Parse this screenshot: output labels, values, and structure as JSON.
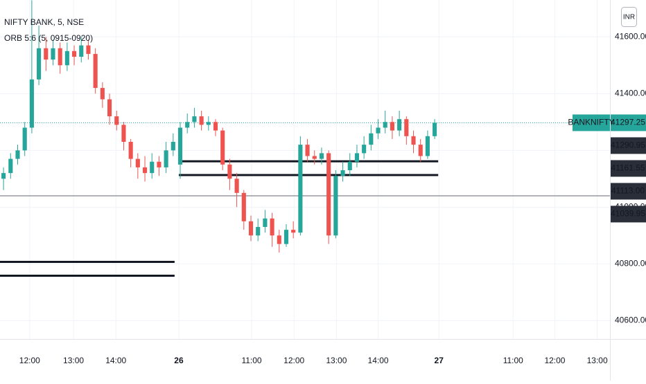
{
  "chart_data": {
    "type": "candlestick",
    "title": "NIFTY BANK, 5, NSE",
    "subtitle": "ORB 5:6 (5, 0915-0920)",
    "symbol": "BANKNIFTY",
    "currency": "INR",
    "up_color": "#26a69a",
    "down_color": "#ef5350",
    "x": [
      0,
      1,
      2,
      3,
      4,
      5,
      6,
      7,
      8,
      9,
      10,
      11,
      12,
      13,
      14,
      15,
      16,
      17,
      18,
      19,
      20,
      21,
      22,
      23,
      24,
      25,
      26,
      27,
      28,
      29,
      30,
      31,
      32,
      33,
      34,
      35,
      36,
      37,
      38,
      39,
      40,
      41,
      42,
      43,
      44,
      45,
      46,
      47,
      48,
      49,
      50,
      51,
      52,
      53,
      54,
      55,
      56,
      57,
      58,
      59,
      60,
      61
    ],
    "open": [
      41100,
      41120,
      41170,
      41200,
      41280,
      41450,
      41560,
      41520,
      41560,
      41500,
      41550,
      41530,
      41570,
      41540,
      41420,
      41380,
      41320,
      41290,
      41230,
      41170,
      41140,
      41120,
      41160,
      41140,
      41200,
      41150,
      41280,
      41300,
      41320,
      41290,
      41300,
      41270,
      41150,
      41100,
      41050,
      40950,
      40900,
      40930,
      40960,
      40900,
      40870,
      40920,
      40910,
      41220,
      41180,
      41170,
      41190,
      40900,
      41110,
      41130,
      41160,
      41190,
      41220,
      41260,
      41280,
      41300,
      41270,
      41310,
      41250,
      41220,
      41180,
      41250
    ],
    "high": [
      41140,
      41190,
      41220,
      41300,
      41729,
      41640,
      41600,
      41590,
      41580,
      41580,
      41570,
      41600,
      41590,
      41560,
      41440,
      41400,
      41340,
      41300,
      41240,
      41190,
      41180,
      41190,
      41180,
      41230,
      41260,
      41300,
      41330,
      41350,
      41340,
      41320,
      41310,
      41280,
      41170,
      41120,
      41060,
      40970,
      40960,
      40990,
      40980,
      40920,
      40940,
      40950,
      41250,
      41240,
      41200,
      41210,
      41200,
      41130,
      41160,
      41190,
      41220,
      41250,
      41290,
      41310,
      41340,
      41320,
      41340,
      41320,
      41270,
      41240,
      41270,
      41310
    ],
    "low": [
      41060,
      41100,
      41150,
      41180,
      41260,
      41430,
      41480,
      41500,
      41470,
      41480,
      41500,
      41510,
      41520,
      41400,
      41350,
      41290,
      41270,
      41200,
      41140,
      41100,
      41090,
      41100,
      41110,
      41120,
      41180,
      41100,
      41260,
      41280,
      41270,
      41270,
      41250,
      41130,
      41060,
      41000,
      40920,
      40880,
      40880,
      40910,
      40860,
      40840,
      40860,
      40890,
      40900,
      41160,
      41150,
      41150,
      40870,
      40890,
      41090,
      41110,
      41140,
      41170,
      41200,
      41240,
      41260,
      41240,
      41250,
      41220,
      41190,
      41160,
      41170,
      41240
    ],
    "close": [
      41120,
      41170,
      41200,
      41280,
      41450,
      41560,
      41520,
      41560,
      41500,
      41550,
      41530,
      41570,
      41540,
      41420,
      41380,
      41320,
      41290,
      41230,
      41170,
      41140,
      41120,
      41160,
      41140,
      41200,
      41230,
      41280,
      41300,
      41320,
      41290,
      41300,
      41270,
      41150,
      41100,
      41050,
      40950,
      40900,
      40930,
      40960,
      40900,
      40870,
      40920,
      40910,
      41220,
      41180,
      41170,
      41190,
      40900,
      41110,
      41130,
      41160,
      41190,
      41220,
      41260,
      41280,
      41300,
      41270,
      41310,
      41250,
      41220,
      41180,
      41250,
      41297.25
    ],
    "xlim": [
      -0.5,
      85.8
    ],
    "xticks": [
      {
        "value": 3.7,
        "label": "12:00"
      },
      {
        "value": 9.9,
        "label": "13:00"
      },
      {
        "value": 15.9,
        "label": "14:00"
      },
      {
        "value": 24.8,
        "label": "26"
      },
      {
        "value": 35.1,
        "label": "11:00"
      },
      {
        "value": 41.1,
        "label": "12:00"
      },
      {
        "value": 47.1,
        "label": "13:00"
      },
      {
        "value": 53.0,
        "label": "14:00"
      },
      {
        "value": 61.6,
        "label": "27"
      },
      {
        "value": 72.1,
        "label": "11:00"
      },
      {
        "value": 78.0,
        "label": "12:00"
      },
      {
        "value": 84.0,
        "label": "13:00"
      }
    ],
    "ylim": [
      40535,
      41730
    ],
    "yticks": [
      {
        "value": 40600,
        "label": "40600.00"
      },
      {
        "value": 40800,
        "label": "40800.00"
      },
      {
        "value": 41000,
        "label": "41000.00"
      },
      {
        "value": 41200,
        "label": "41200.00"
      },
      {
        "value": 41400,
        "label": "41400.00"
      },
      {
        "value": 41600,
        "label": "41600.00"
      }
    ],
    "price_labels": [
      {
        "value": 41297.25,
        "label": "41297.25"
      },
      {
        "value": 41290.95,
        "label": "41290.95"
      },
      {
        "value": 41161.55,
        "label": "41161.55"
      },
      {
        "value": 41113,
        "label": "41113.00"
      },
      {
        "value": 41039.95,
        "label": "41039.95"
      }
    ],
    "orb_lines": [
      {
        "value": 41161.55,
        "from": 24.8,
        "to": 61.5
      },
      {
        "value": 41113,
        "from": 24.8,
        "to": 61.5
      },
      {
        "value": 40807,
        "from": -0.5,
        "to": 24.2
      },
      {
        "value": 40758,
        "from": -0.5,
        "to": 24.2
      }
    ],
    "gray_line": 41039.95
  }
}
